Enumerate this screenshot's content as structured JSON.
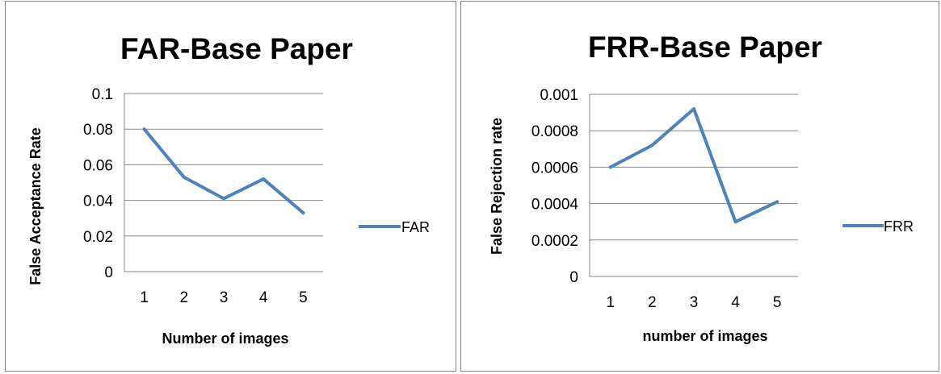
{
  "chart_data": [
    {
      "type": "line",
      "title": "FAR-Base Paper",
      "xlabel": "Number of images",
      "ylabel": "False Acceptance Rate",
      "categories": [
        "1",
        "2",
        "3",
        "4",
        "5"
      ],
      "yticks": [
        "0",
        "0.02",
        "0.04",
        "0.06",
        "0.08",
        "0.1"
      ],
      "ylim": [
        0,
        0.1
      ],
      "grid": true,
      "legend": "right",
      "series": [
        {
          "name": "FAR",
          "color": "#4f81bd",
          "values": [
            0.08,
            0.053,
            0.041,
            0.052,
            0.033
          ]
        }
      ]
    },
    {
      "type": "line",
      "title": "FRR-Base Paper",
      "xlabel": "number of images",
      "ylabel": "False Rejection rate",
      "categories": [
        "1",
        "2",
        "3",
        "4",
        "5"
      ],
      "yticks": [
        "0",
        "0.0002",
        "0.0004",
        "0.0006",
        "0.0008",
        "0.001"
      ],
      "ylim": [
        0,
        0.001
      ],
      "grid": true,
      "legend": "right",
      "series": [
        {
          "name": "FRR",
          "color": "#4f81bd",
          "values": [
            0.0006,
            0.00072,
            0.00092,
            0.0003,
            0.00041
          ]
        }
      ]
    }
  ]
}
